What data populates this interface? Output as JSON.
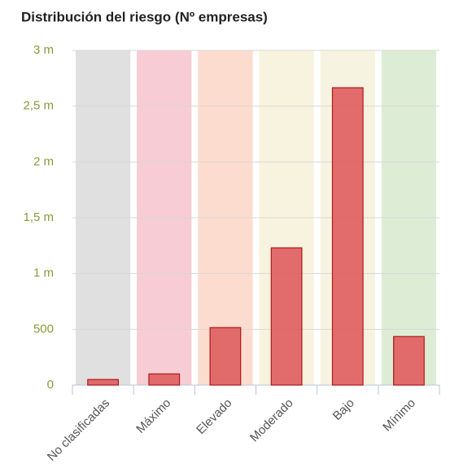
{
  "chart_data": {
    "type": "bar",
    "title": "Distribución del riesgo (Nº empresas)",
    "categories": [
      "No clasificadas",
      "Máximo",
      "Elevado",
      "Moderado",
      "Bajo",
      "Mínimo"
    ],
    "values": [
      50,
      100,
      515,
      1230,
      2665,
      435
    ],
    "color": "#df6464",
    "band_colors": [
      "#e0e0e0",
      "#f7ccd5",
      "#fcdcce",
      "#f8f3de",
      "#f7f3e1",
      "#dcecd5"
    ],
    "ylim": [
      0,
      3000
    ],
    "yticks": [
      0,
      500,
      {
        "value": 1000,
        "label": "1 m"
      },
      {
        "value": 1500,
        "label": "1,5 m"
      },
      {
        "value": 2000,
        "label": "2 m"
      },
      {
        "value": 2500,
        "label": "2,5 m"
      },
      {
        "value": 3000,
        "label": "3 m"
      }
    ],
    "grid": true
  }
}
